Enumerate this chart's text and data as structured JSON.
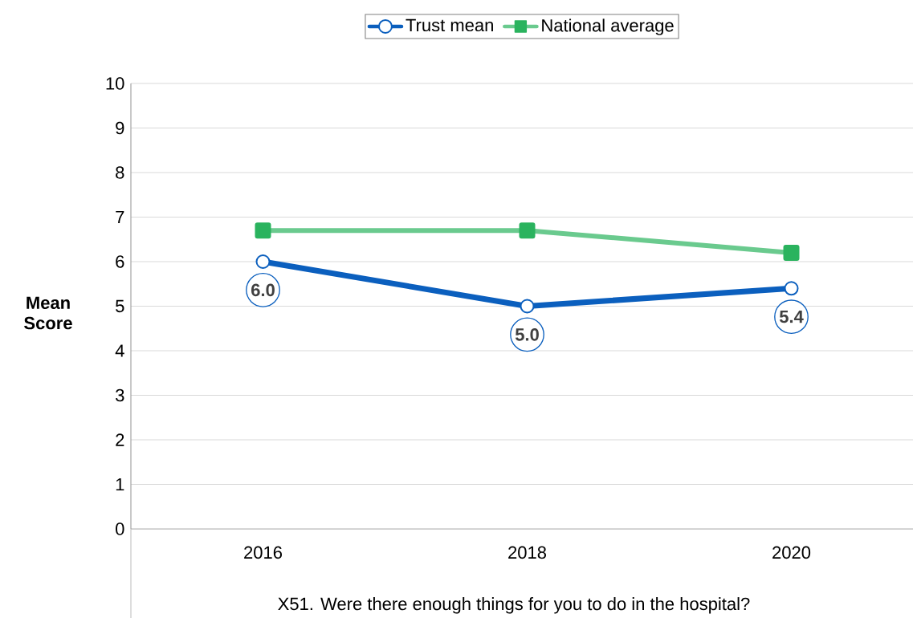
{
  "chart_data": {
    "type": "line",
    "xlabel": "X51. Were there enough things for you to do in the hospital?",
    "ylabel": "Mean Score",
    "categories": [
      "2016",
      "2018",
      "2020"
    ],
    "series": [
      {
        "name": "Trust mean",
        "color": "#0b5fbe",
        "values": [
          6.0,
          5.0,
          5.4
        ],
        "marker": "circle",
        "value_labels": [
          "6.0",
          "5.0",
          "5.4"
        ]
      },
      {
        "name": "National average",
        "color": "#2ab35e",
        "values": [
          6.7,
          6.7,
          6.2
        ],
        "marker": "square"
      }
    ],
    "ylim": [
      0,
      10
    ],
    "yticks": [
      0,
      1,
      2,
      3,
      4,
      5,
      6,
      7,
      8,
      9,
      10
    ],
    "grid": "y",
    "legend": "top",
    "line_style": "solid"
  }
}
